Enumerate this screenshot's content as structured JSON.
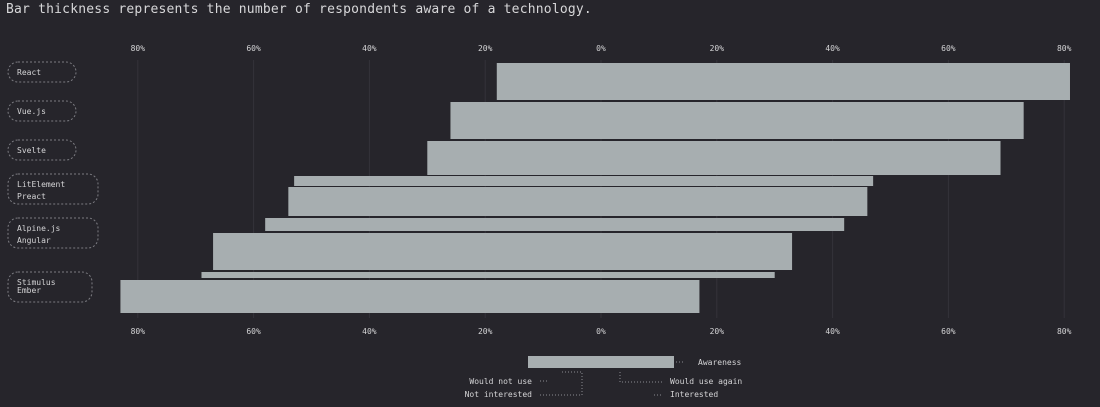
{
  "caption": "Bar thickness represents the number of respondents aware of a technology.",
  "chart_data": {
    "type": "bar",
    "orientation": "horizontal",
    "axis_ticks": [
      "80%",
      "60%",
      "40%",
      "20%",
      "0%",
      "20%",
      "40%",
      "60%",
      "80%"
    ],
    "axis_tick_values": [
      -80,
      -60,
      -40,
      -20,
      0,
      20,
      40,
      60,
      80
    ],
    "xlim": [
      -83,
      81
    ],
    "grid": true,
    "categories": [
      "React",
      "Vue.js",
      "Svelte",
      "LitElement",
      "Preact",
      "Alpine.js",
      "Angular",
      "Stimulus",
      "Ember"
    ],
    "bars": [
      {
        "label": "React",
        "start": -18,
        "end": 81,
        "awareness_share": 1.0
      },
      {
        "label": "Vue.js",
        "start": -26,
        "end": 73,
        "awareness_share": 1.0
      },
      {
        "label": "Svelte",
        "start": -30,
        "end": 69,
        "awareness_share": 1.0
      },
      {
        "label": "LitElement",
        "start": -53,
        "end": 47,
        "awareness_share": 0.27
      },
      {
        "label": "Preact",
        "start": -54,
        "end": 46,
        "awareness_share": 0.78
      },
      {
        "label": "Alpine.js",
        "start": -58,
        "end": 42,
        "awareness_share": 0.3
      },
      {
        "label": "Angular",
        "start": -67,
        "end": 33,
        "awareness_share": 1.0
      },
      {
        "label": "Stimulus",
        "start": -69,
        "end": 30,
        "awareness_share": 0.18
      },
      {
        "label": "Ember",
        "start": -83,
        "end": 17,
        "awareness_share": 0.95
      }
    ],
    "legend": {
      "awareness": "Awareness",
      "would_not_use": "Would not use",
      "not_interested": "Not interested",
      "would_use_again": "Would use again",
      "interested": "Interested",
      "placement": "bottom-center"
    },
    "colors": {
      "background": "#26252b",
      "bar": "#a7aeb0",
      "grid": "#34333a",
      "text": "#d4d4d6"
    }
  }
}
